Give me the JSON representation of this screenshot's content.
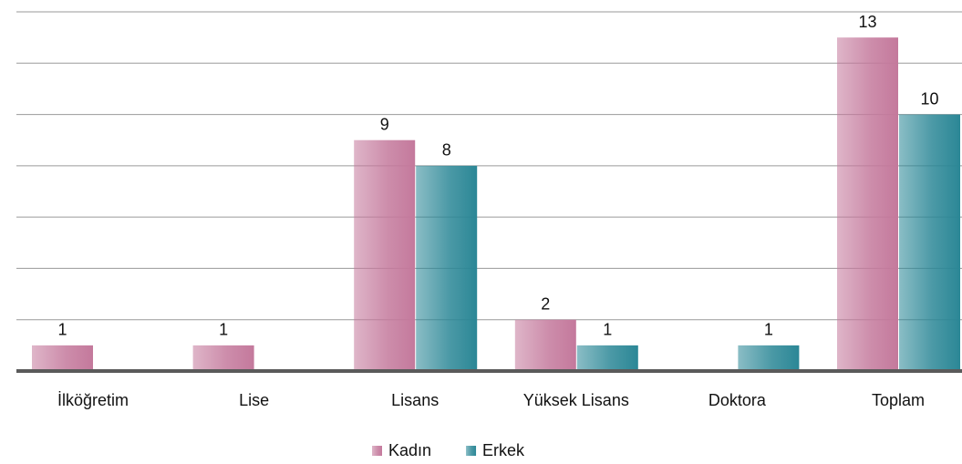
{
  "chart_data": {
    "type": "bar",
    "categories": [
      "İlköğretim",
      "Lise",
      "Lisans",
      "Yüksek Lisans",
      "Doktora",
      "Toplam"
    ],
    "series": [
      {
        "name": "Kadın",
        "color": "#c4799c",
        "values": [
          1,
          1,
          9,
          2,
          null,
          13
        ]
      },
      {
        "name": "Erkek",
        "color": "#2b8796",
        "values": [
          null,
          null,
          8,
          1,
          1,
          10
        ]
      }
    ],
    "ylim": [
      0,
      14
    ],
    "yticks": [
      0,
      2,
      4,
      6,
      8,
      10,
      12,
      14
    ],
    "grid": true,
    "legend": "bottom"
  }
}
